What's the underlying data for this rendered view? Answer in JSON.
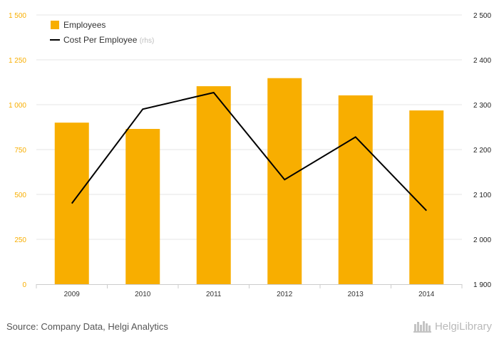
{
  "chart_data": {
    "type": "bar",
    "categories": [
      "2009",
      "2010",
      "2011",
      "2012",
      "2013",
      "2014"
    ],
    "series": [
      {
        "name": "Employees",
        "type": "bar",
        "axis": "left",
        "color": "#f8ae00",
        "values": [
          900,
          865,
          1103,
          1148,
          1052,
          968
        ]
      },
      {
        "name": "Cost Per Employee",
        "legend_suffix": "(rhs)",
        "type": "line",
        "axis": "right",
        "color": "#000000",
        "values": [
          2080,
          2290,
          2327,
          2133,
          2228,
          2064
        ]
      }
    ],
    "y_left": {
      "min": 0,
      "max": 1500,
      "ticks": [
        0,
        250,
        500,
        750,
        1000,
        1250,
        1500
      ],
      "tick_labels": [
        "0",
        "250",
        "500",
        "750",
        "1 000",
        "1 250",
        "1 500"
      ],
      "color": "#f8ae00"
    },
    "y_right": {
      "min": 1900,
      "max": 2500,
      "ticks": [
        1900,
        2000,
        2100,
        2200,
        2300,
        2400,
        2500
      ],
      "tick_labels": [
        "1 900",
        "2 000",
        "2 100",
        "2 200",
        "2 300",
        "2 400",
        "2 500"
      ],
      "color": "#222222"
    },
    "grid": true,
    "legend_position": "top-left"
  },
  "footer": {
    "source": "Source: Company Data, Helgi Analytics",
    "brand": "HelgiLibrary"
  }
}
